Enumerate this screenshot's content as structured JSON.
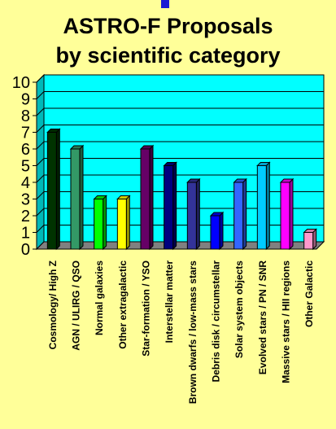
{
  "title_lines": [
    "ASTRO-F Proposals",
    "by scientific category"
  ],
  "chart_data": {
    "type": "bar",
    "categories": [
      "Cosmology/ High Z",
      "AGN / ULIRG / QSO",
      "Normal galaxies",
      "Other extragalactic",
      "Star-formation / YSO",
      "Interstellar matter",
      "Brown dwarfs / low-mass stars",
      "Debris disk / circumstellar",
      "Solar system objects",
      "Evolved stars / PN / SNR",
      "Massive stars / HII regions",
      "Other Galactic"
    ],
    "values": [
      7,
      6,
      3,
      3,
      6,
      5,
      4,
      2,
      4,
      5,
      4,
      1
    ],
    "colors": [
      "#003300",
      "#339966",
      "#00ff00",
      "#ffff00",
      "#660066",
      "#000080",
      "#333399",
      "#0000ff",
      "#3366ff",
      "#00ccff",
      "#ff00ff",
      "#ff99cc"
    ],
    "ylim": [
      0,
      10
    ],
    "yticks": [
      "0",
      "1",
      "2",
      "3",
      "4",
      "5",
      "6",
      "7",
      "8",
      "9",
      "10"
    ],
    "grid": true,
    "legend": "none",
    "plot_color": "#00ffff"
  }
}
